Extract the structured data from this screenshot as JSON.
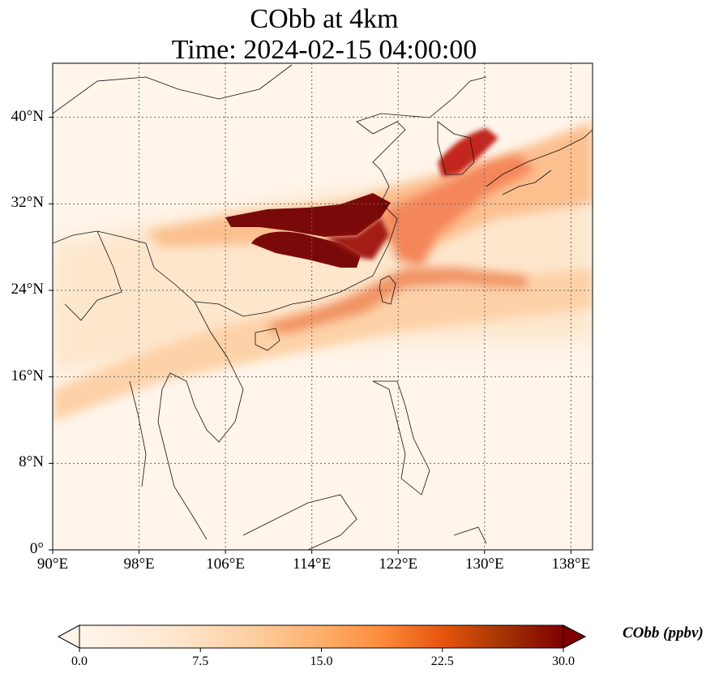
{
  "title": {
    "line1": "CObb at 4km",
    "line2": "Time: 2024-02-15 04:00:00"
  },
  "map": {
    "variable": "CObb",
    "extent": {
      "lon": [
        90,
        140
      ],
      "lat": [
        0,
        45
      ]
    },
    "lon_ticks": [
      {
        "value": 90,
        "label": "90°E"
      },
      {
        "value": 98,
        "label": "98°E"
      },
      {
        "value": 106,
        "label": "106°E"
      },
      {
        "value": 114,
        "label": "114°E"
      },
      {
        "value": 122,
        "label": "122°E"
      },
      {
        "value": 130,
        "label": "130°E"
      },
      {
        "value": 138,
        "label": "138°E"
      }
    ],
    "lat_ticks": [
      {
        "value": 0,
        "label": "0°"
      },
      {
        "value": 8,
        "label": "8°N"
      },
      {
        "value": 16,
        "label": "16°N"
      },
      {
        "value": 24,
        "label": "24°N"
      },
      {
        "value": 32,
        "label": "32°N"
      },
      {
        "value": 40,
        "label": "40°N"
      }
    ],
    "gridlines": true,
    "plume_regions": [
      {
        "name": "south-china-core",
        "level": "max"
      },
      {
        "name": "east-china-sea-band",
        "level": "high"
      },
      {
        "name": "korea-band",
        "level": "high"
      },
      {
        "name": "taiwan-strait-band",
        "level": "moderate"
      },
      {
        "name": "indochina-band",
        "level": "low"
      }
    ]
  },
  "colorbar": {
    "label": "CObb (ppbv)",
    "ticks": [
      {
        "value": 0.0,
        "label": "0.0"
      },
      {
        "value": 7.5,
        "label": "7.5"
      },
      {
        "value": 15.0,
        "label": "15.0"
      },
      {
        "value": 22.5,
        "label": "22.5"
      },
      {
        "value": 30.0,
        "label": "30.0"
      }
    ],
    "range": [
      0,
      30
    ],
    "extend": "both",
    "colormap": [
      "#fff5eb",
      "#fdd0a2",
      "#fd8d3c",
      "#d94801",
      "#a50f15",
      "#67000d"
    ]
  }
}
